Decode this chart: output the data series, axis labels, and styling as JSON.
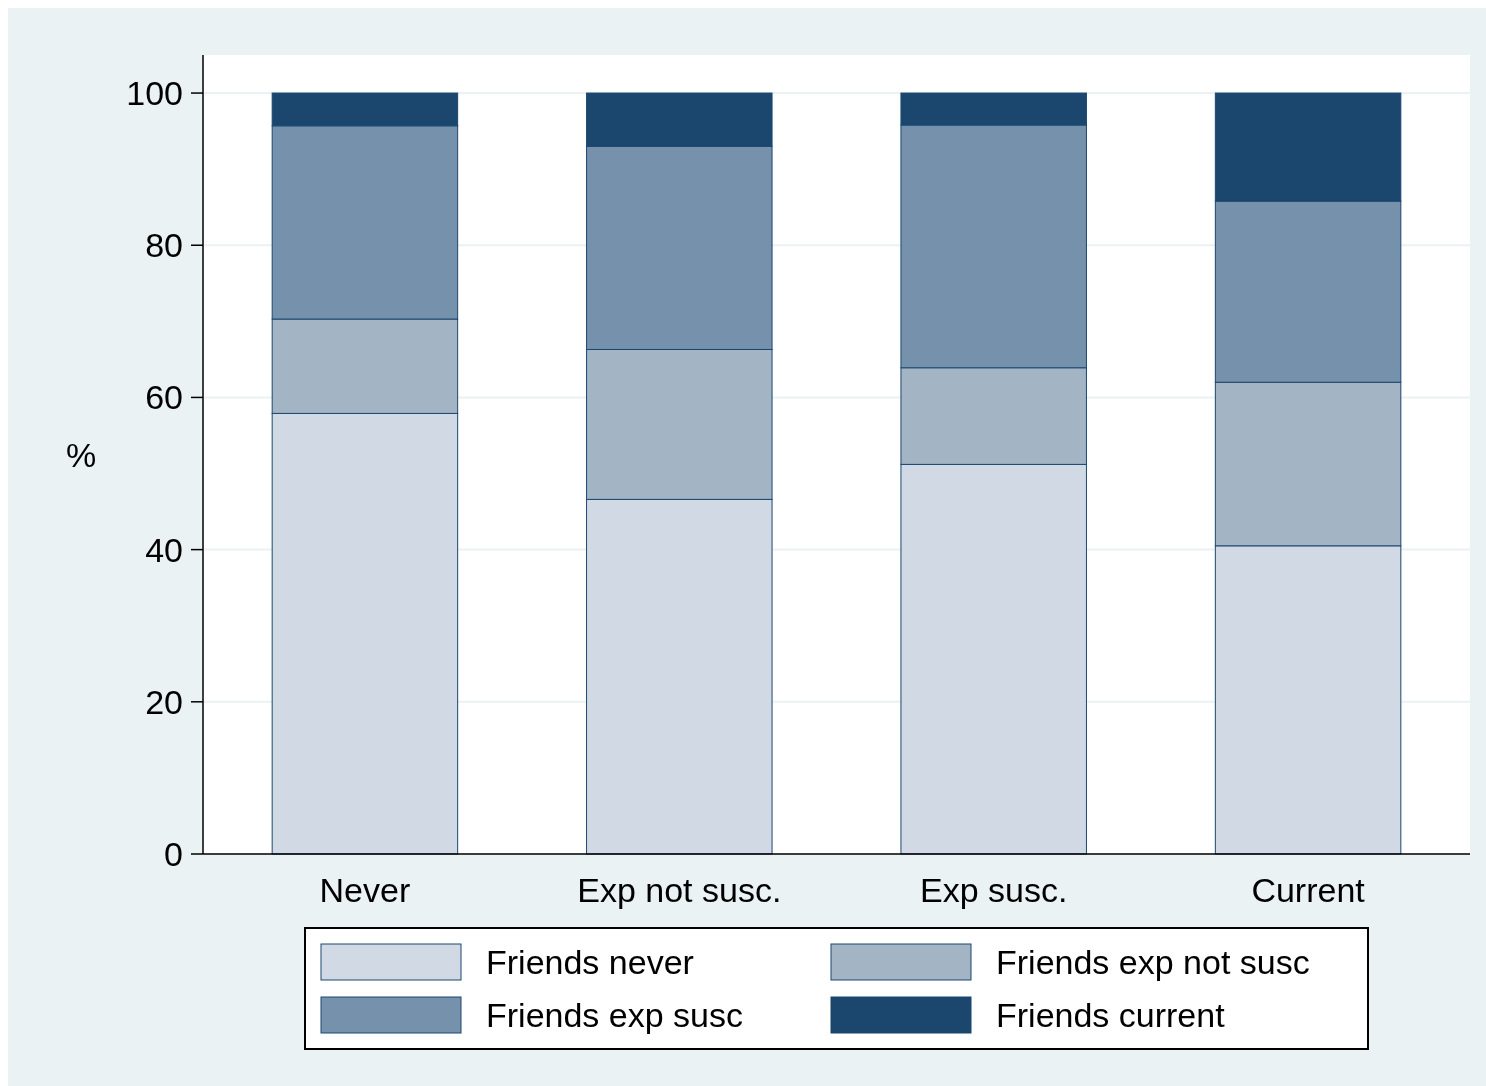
{
  "chart_data": {
    "type": "bar",
    "stacked": true,
    "ylabel": "%",
    "categories": [
      "Never",
      "Exp not susc.",
      "Exp susc.",
      "Current"
    ],
    "series": [
      {
        "name": "Friends never",
        "color": "#d1dae4",
        "values": [
          57.9,
          46.6,
          51.2,
          40.5
        ]
      },
      {
        "name": "Friends exp not susc",
        "color": "#a3b4c5",
        "values": [
          12.4,
          19.7,
          12.7,
          21.5
        ]
      },
      {
        "name": "Friends exp susc",
        "color": "#7691ab",
        "values": [
          25.4,
          26.7,
          31.9,
          23.8
        ]
      },
      {
        "name": "Friends current",
        "color": "#1b476f",
        "values": [
          4.3,
          7.0,
          4.2,
          14.2
        ]
      }
    ],
    "ylim": [
      0,
      105
    ],
    "yticks": [
      0,
      20,
      40,
      60,
      80,
      100
    ],
    "grid": "y",
    "legend": "bottom"
  }
}
